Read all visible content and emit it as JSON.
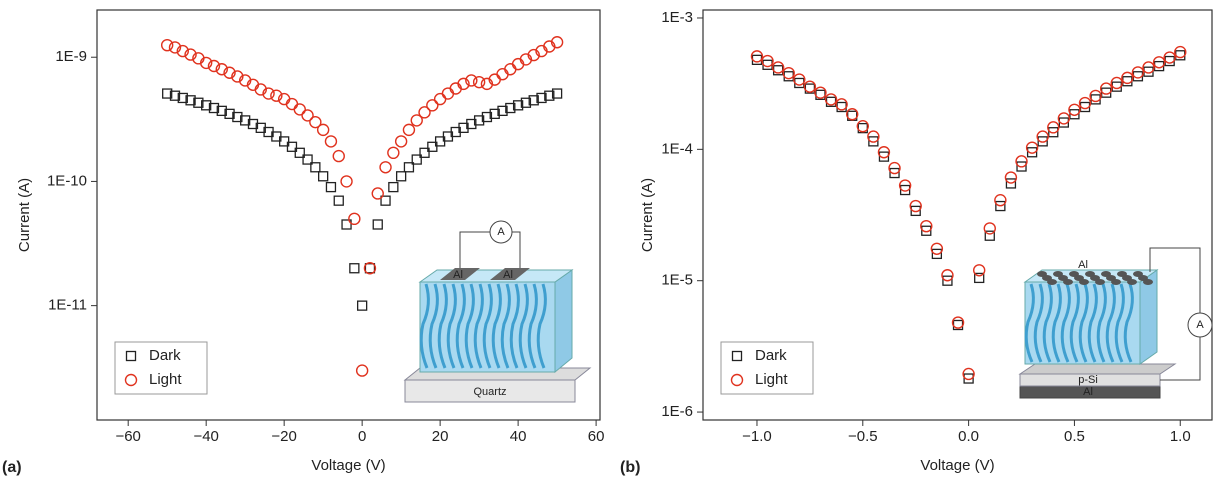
{
  "chart_data": [
    {
      "type": "scatter",
      "panel_label": "(a)",
      "x_label": "Voltage (V)",
      "y_label": "Current (A)",
      "x": [
        -50,
        -48,
        -46,
        -44,
        -42,
        -40,
        -38,
        -36,
        -34,
        -32,
        -30,
        -28,
        -26,
        -24,
        -22,
        -20,
        -18,
        -16,
        -14,
        -12,
        -10,
        -8,
        -6,
        -4,
        -2,
        0,
        2,
        4,
        6,
        8,
        10,
        12,
        14,
        16,
        18,
        20,
        22,
        24,
        26,
        28,
        30,
        32,
        34,
        36,
        38,
        40,
        42,
        44,
        46,
        48,
        50
      ],
      "series": [
        {
          "name": "Dark",
          "color": "#222222",
          "marker": "square",
          "values": [
            5.1e-10,
            4.9e-10,
            4.7e-10,
            4.5e-10,
            4.3e-10,
            4.1e-10,
            3.9e-10,
            3.7e-10,
            3.5e-10,
            3.3e-10,
            3.1e-10,
            2.9e-10,
            2.7e-10,
            2.5e-10,
            2.3e-10,
            2.1e-10,
            1.9e-10,
            1.7e-10,
            1.5e-10,
            1.3e-10,
            1.1e-10,
            9e-11,
            7e-11,
            4.5e-11,
            2e-11,
            1e-11,
            2e-11,
            4.5e-11,
            7e-11,
            9e-11,
            1.1e-10,
            1.3e-10,
            1.5e-10,
            1.7e-10,
            1.9e-10,
            2.1e-10,
            2.3e-10,
            2.5e-10,
            2.7e-10,
            2.9e-10,
            3.1e-10,
            3.3e-10,
            3.5e-10,
            3.7e-10,
            3.9e-10,
            4.1e-10,
            4.3e-10,
            4.5e-10,
            4.7e-10,
            4.9e-10,
            5.1e-10
          ]
        },
        {
          "name": "Light",
          "color": "#e0321e",
          "marker": "circle",
          "values": [
            1.25e-09,
            1.2e-09,
            1.12e-09,
            1.05e-09,
            9.8e-10,
            9e-10,
            8.5e-10,
            8e-10,
            7.5e-10,
            7e-10,
            6.5e-10,
            6e-10,
            5.5e-10,
            5.1e-10,
            4.9e-10,
            4.6e-10,
            4.2e-10,
            3.8e-10,
            3.4e-10,
            3e-10,
            2.6e-10,
            2.1e-10,
            1.6e-10,
            1e-10,
            5e-11,
            3e-12,
            2e-11,
            8e-11,
            1.3e-10,
            1.7e-10,
            2.1e-10,
            2.6e-10,
            3.1e-10,
            3.6e-10,
            4.1e-10,
            4.6e-10,
            5.1e-10,
            5.6e-10,
            6.1e-10,
            6.5e-10,
            6.3e-10,
            6.1e-10,
            6.6e-10,
            7.3e-10,
            8e-10,
            8.8e-10,
            9.6e-10,
            1.04e-09,
            1.12e-09,
            1.22e-09,
            1.32e-09
          ]
        }
      ],
      "xlim": [
        -68,
        61
      ],
      "xticks": [
        {
          "value": -60,
          "label": "−60"
        },
        {
          "value": -40,
          "label": "−40"
        },
        {
          "value": -20,
          "label": "−20"
        },
        0,
        20,
        40,
        60
      ],
      "yscale": "log",
      "ylim": [
        1.2e-12,
        2.4e-09
      ],
      "yticks": [
        {
          "value": 1e-11,
          "label": "1E-11"
        },
        {
          "value": 1e-10,
          "label": "1E-10"
        },
        {
          "value": 1e-09,
          "label": "1E-9"
        }
      ],
      "legend": "lower left",
      "annotations": [
        "A",
        "Al",
        "Al",
        "Quartz"
      ]
    },
    {
      "type": "scatter",
      "panel_label": "(b)",
      "x_label": "Voltage (V)",
      "y_label": "Current (A)",
      "x": [
        -1,
        -0.95,
        -0.9,
        -0.85,
        -0.8,
        -0.75,
        -0.7,
        -0.65,
        -0.6,
        -0.55,
        -0.5,
        -0.45,
        -0.4,
        -0.35,
        -0.3,
        -0.25,
        -0.2,
        -0.15,
        -0.1,
        -0.05,
        0,
        0.05,
        0.1,
        0.15,
        0.2,
        0.25,
        0.3,
        0.35,
        0.4,
        0.45,
        0.5,
        0.55,
        0.6,
        0.65,
        0.7,
        0.75,
        0.8,
        0.85,
        0.9,
        0.95,
        1
      ],
      "series": [
        {
          "name": "Dark",
          "color": "#222222",
          "marker": "square",
          "values": [
            0.00048,
            0.00044,
            0.0004,
            0.00036,
            0.00032,
            0.00029,
            0.00026,
            0.00023,
            0.00021,
            0.00018,
            0.000145,
            0.000115,
            8.8e-05,
            6.6e-05,
            4.9e-05,
            3.4e-05,
            2.4e-05,
            1.6e-05,
            1e-05,
            4.6e-06,
            1.8e-06,
            1.05e-05,
            2.2e-05,
            3.7e-05,
            5.5e-05,
            7.4e-05,
            9.5e-05,
            0.000115,
            0.000135,
            0.00016,
            0.000185,
            0.00021,
            0.00024,
            0.00027,
            0.0003,
            0.00033,
            0.00036,
            0.00039,
            0.00043,
            0.00047,
            0.00052
          ]
        },
        {
          "name": "Light",
          "color": "#e0321e",
          "marker": "circle",
          "values": [
            0.00051,
            0.00047,
            0.00042,
            0.00038,
            0.00034,
            0.0003,
            0.00027,
            0.00024,
            0.00022,
            0.000185,
            0.00015,
            0.000125,
            9.5e-05,
            7.2e-05,
            5.3e-05,
            3.7e-05,
            2.6e-05,
            1.75e-05,
            1.1e-05,
            4.8e-06,
            1.95e-06,
            1.2e-05,
            2.5e-05,
            4.1e-05,
            6.1e-05,
            8.1e-05,
            0.000103,
            0.000125,
            0.000147,
            0.000172,
            0.0002,
            0.000225,
            0.000255,
            0.00029,
            0.00032,
            0.00035,
            0.000385,
            0.00042,
            0.00046,
            0.0005,
            0.00055
          ]
        }
      ],
      "xlim": [
        -1.255,
        1.15
      ],
      "xticks": [
        {
          "value": -1,
          "label": "−1.0"
        },
        {
          "value": -0.5,
          "label": "−0.5"
        },
        {
          "value": 0,
          "label": "0.0"
        },
        0.5,
        {
          "value": 1,
          "label": "1.0"
        }
      ],
      "yscale": "log",
      "ylim": [
        8.7e-07,
        0.00115
      ],
      "yticks": [
        {
          "value": 1e-06,
          "label": "1E-6"
        },
        {
          "value": 1e-05,
          "label": "1E-5"
        },
        {
          "value": 0.0001,
          "label": "1E-4"
        },
        {
          "value": 0.001,
          "label": "1E-3"
        }
      ],
      "legend": "lower left",
      "annotations": [
        "Al",
        "A",
        "p-Si",
        "Al"
      ]
    }
  ]
}
